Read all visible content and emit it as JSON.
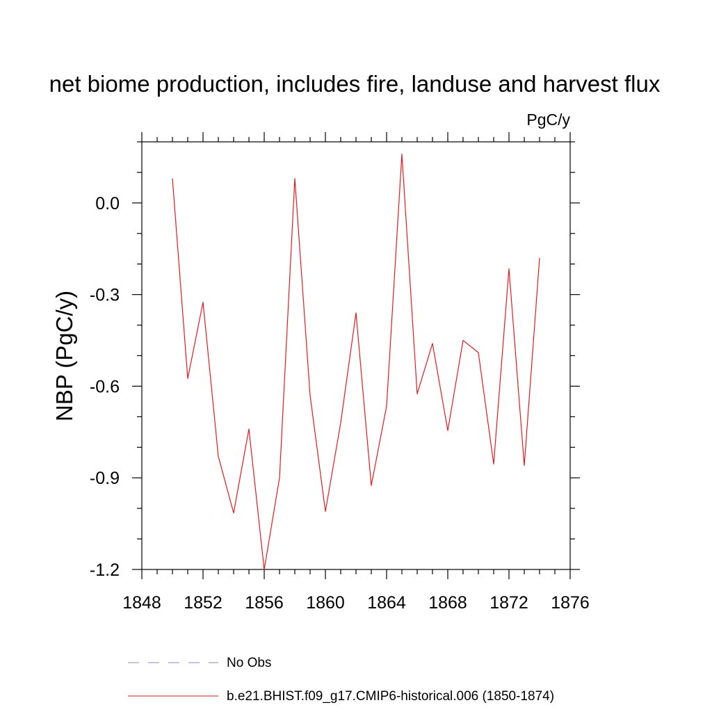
{
  "chart_data": {
    "type": "line",
    "title": "net biome production, includes fire, landuse and harvest flux",
    "units": "PgC/y",
    "ylabel": "NBP  (PgC/y)",
    "xlabel": "",
    "xlim": [
      1848,
      1876
    ],
    "ylim": [
      -1.2,
      0.2
    ],
    "x_ticks": [
      1848,
      1852,
      1856,
      1860,
      1864,
      1868,
      1872,
      1876
    ],
    "x_tick_labels": [
      "1848",
      "1852",
      "1856",
      "1860",
      "1864",
      "1868",
      "1872",
      "1876"
    ],
    "y_ticks": [
      0.0,
      -0.3,
      -0.6,
      -0.9,
      -1.2
    ],
    "y_tick_labels": [
      "0.0",
      "-0.3",
      "-0.6",
      "-0.9",
      "-1.2"
    ],
    "grid": false,
    "series": [
      {
        "name": "b.e21.BHIST.f09_g17.CMIP6-historical.006 (1850-1874)",
        "color": "#e8191e",
        "style": "solid",
        "x": [
          1850,
          1851,
          1852,
          1853,
          1854,
          1855,
          1856,
          1857,
          1858,
          1859,
          1860,
          1861,
          1862,
          1863,
          1864,
          1865,
          1866,
          1867,
          1868,
          1869,
          1870,
          1871,
          1872,
          1873,
          1874
        ],
        "values": [
          0.08,
          -0.575,
          -0.325,
          -0.83,
          -1.015,
          -0.74,
          -1.2,
          -0.9,
          0.08,
          -0.63,
          -1.01,
          -0.72,
          -0.36,
          -0.925,
          -0.665,
          0.16,
          -0.625,
          -0.46,
          -0.745,
          -0.45,
          -0.49,
          -0.855,
          -0.215,
          -0.86,
          -0.18
        ]
      }
    ],
    "legend": [
      {
        "label": "No Obs",
        "color": "#8a8ac6",
        "style": "dashed"
      },
      {
        "label": "b.e21.BHIST.f09_g17.CMIP6-historical.006 (1850-1874)",
        "color": "#e8191e",
        "style": "solid"
      }
    ],
    "legend_position": "bottom"
  }
}
